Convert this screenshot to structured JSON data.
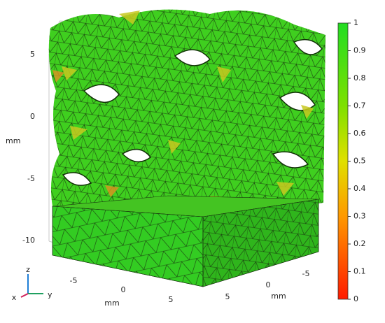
{
  "left_axis": {
    "ticks": [
      "5",
      "0",
      "-5",
      "-10"
    ],
    "label": "mm"
  },
  "front_axis": {
    "ticks": [
      "-5",
      "0",
      "5"
    ],
    "label": "mm"
  },
  "right_axis": {
    "ticks": [
      "5",
      "0",
      "-5"
    ],
    "label": "mm"
  },
  "colorbar": {
    "ticks": [
      1,
      0.9,
      0.8,
      0.7,
      0.6,
      0.5,
      0.4,
      0.3,
      0.2,
      0.1,
      0
    ]
  },
  "triad": {
    "x": "x",
    "y": "y",
    "z": "z"
  }
}
